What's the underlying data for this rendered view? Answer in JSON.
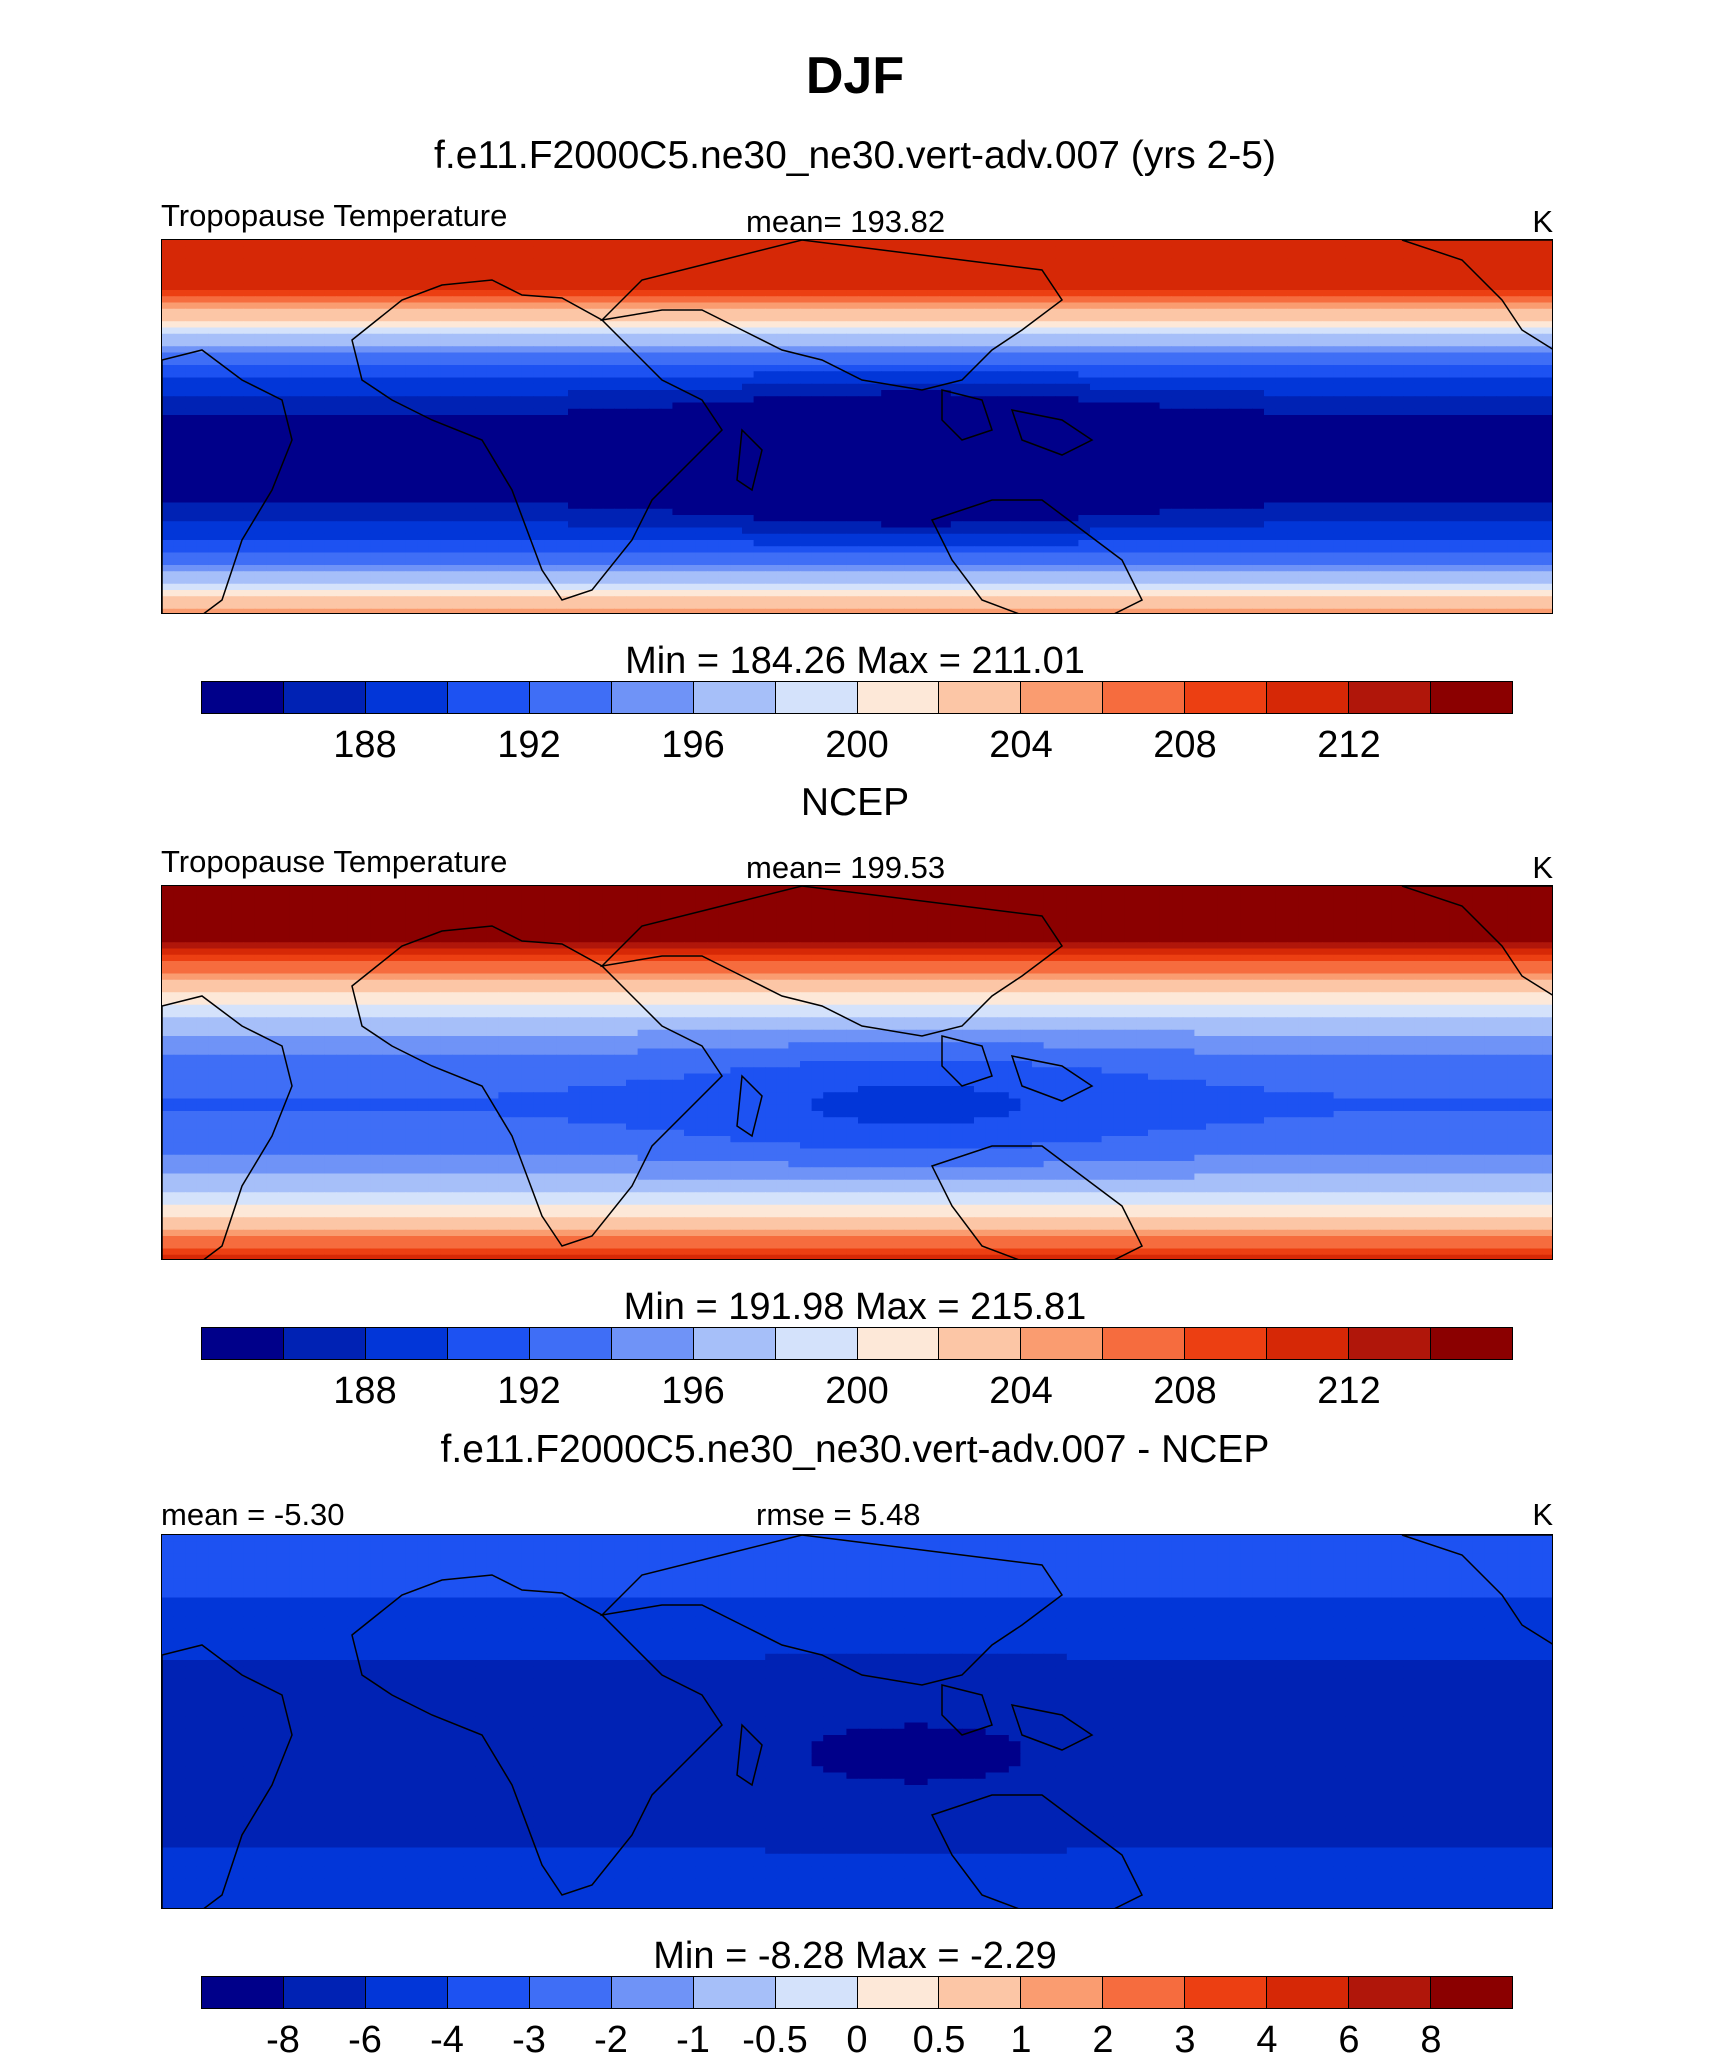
{
  "figure": {
    "title": "DJF"
  },
  "panels": [
    {
      "subtitle": "f.e11.F2000C5.ne30_ne30.vert-adv.007 (yrs 2-5)",
      "left_label": "Tropopause Temperature",
      "center_label": "mean= 193.82",
      "right_label": "K",
      "minmax": "Min = 184.26 Max = 211.01",
      "field": {
        "eq_min": 184.26,
        "pole_max": 211.01,
        "pacific_dip": 5.5
      },
      "colorbar_ticks": [
        "188",
        "192",
        "196",
        "200",
        "204",
        "208",
        "212"
      ],
      "colorbar_levels": [
        186,
        188,
        190,
        192,
        194,
        196,
        198,
        200,
        202,
        204,
        206,
        208,
        210,
        212,
        214
      ]
    },
    {
      "subtitle": "NCEP",
      "left_label": "Tropopause Temperature",
      "center_label": "mean= 199.53",
      "right_label": "K",
      "minmax": "Min = 191.98 Max = 215.81",
      "field": {
        "eq_min": 191.98,
        "pole_max": 215.81,
        "pacific_dip": 2.5
      },
      "colorbar_ticks": [
        "188",
        "192",
        "196",
        "200",
        "204",
        "208",
        "212"
      ],
      "colorbar_levels": [
        186,
        188,
        190,
        192,
        194,
        196,
        198,
        200,
        202,
        204,
        206,
        208,
        210,
        212,
        214
      ]
    },
    {
      "subtitle": "f.e11.F2000C5.ne30_ne30.vert-adv.007 - NCEP",
      "left_label": "mean =  -5.30",
      "center_label": "rmse =   5.48",
      "right_label": "K",
      "minmax": "Min =  -8.28 Max =  -2.29",
      "field": {
        "eq_min": -7.0,
        "pole_max": -3.5,
        "pacific_dip": 1.3
      },
      "colorbar_ticks": [
        "-8",
        "-6",
        "-4",
        "-3",
        "-2",
        "-1",
        "-0.5",
        "0",
        "0.5",
        "1",
        "2",
        "3",
        "4",
        "6",
        "8"
      ],
      "colorbar_levels": [
        -8,
        -6,
        -4,
        -3,
        -2,
        -1,
        -0.5,
        0,
        0.5,
        1,
        2,
        3,
        4,
        6,
        8
      ]
    }
  ],
  "colorbar": {
    "colors": [
      "#00008a",
      "#0022b4",
      "#0236d8",
      "#1d52f2",
      "#3f6ef6",
      "#6f93f7",
      "#a6bff9",
      "#d4e2fb",
      "#fde8d8",
      "#fcc6a6",
      "#fa9c70",
      "#f66c3e",
      "#ec3f12",
      "#d62806",
      "#b0160a",
      "#8b0000"
    ]
  }
}
